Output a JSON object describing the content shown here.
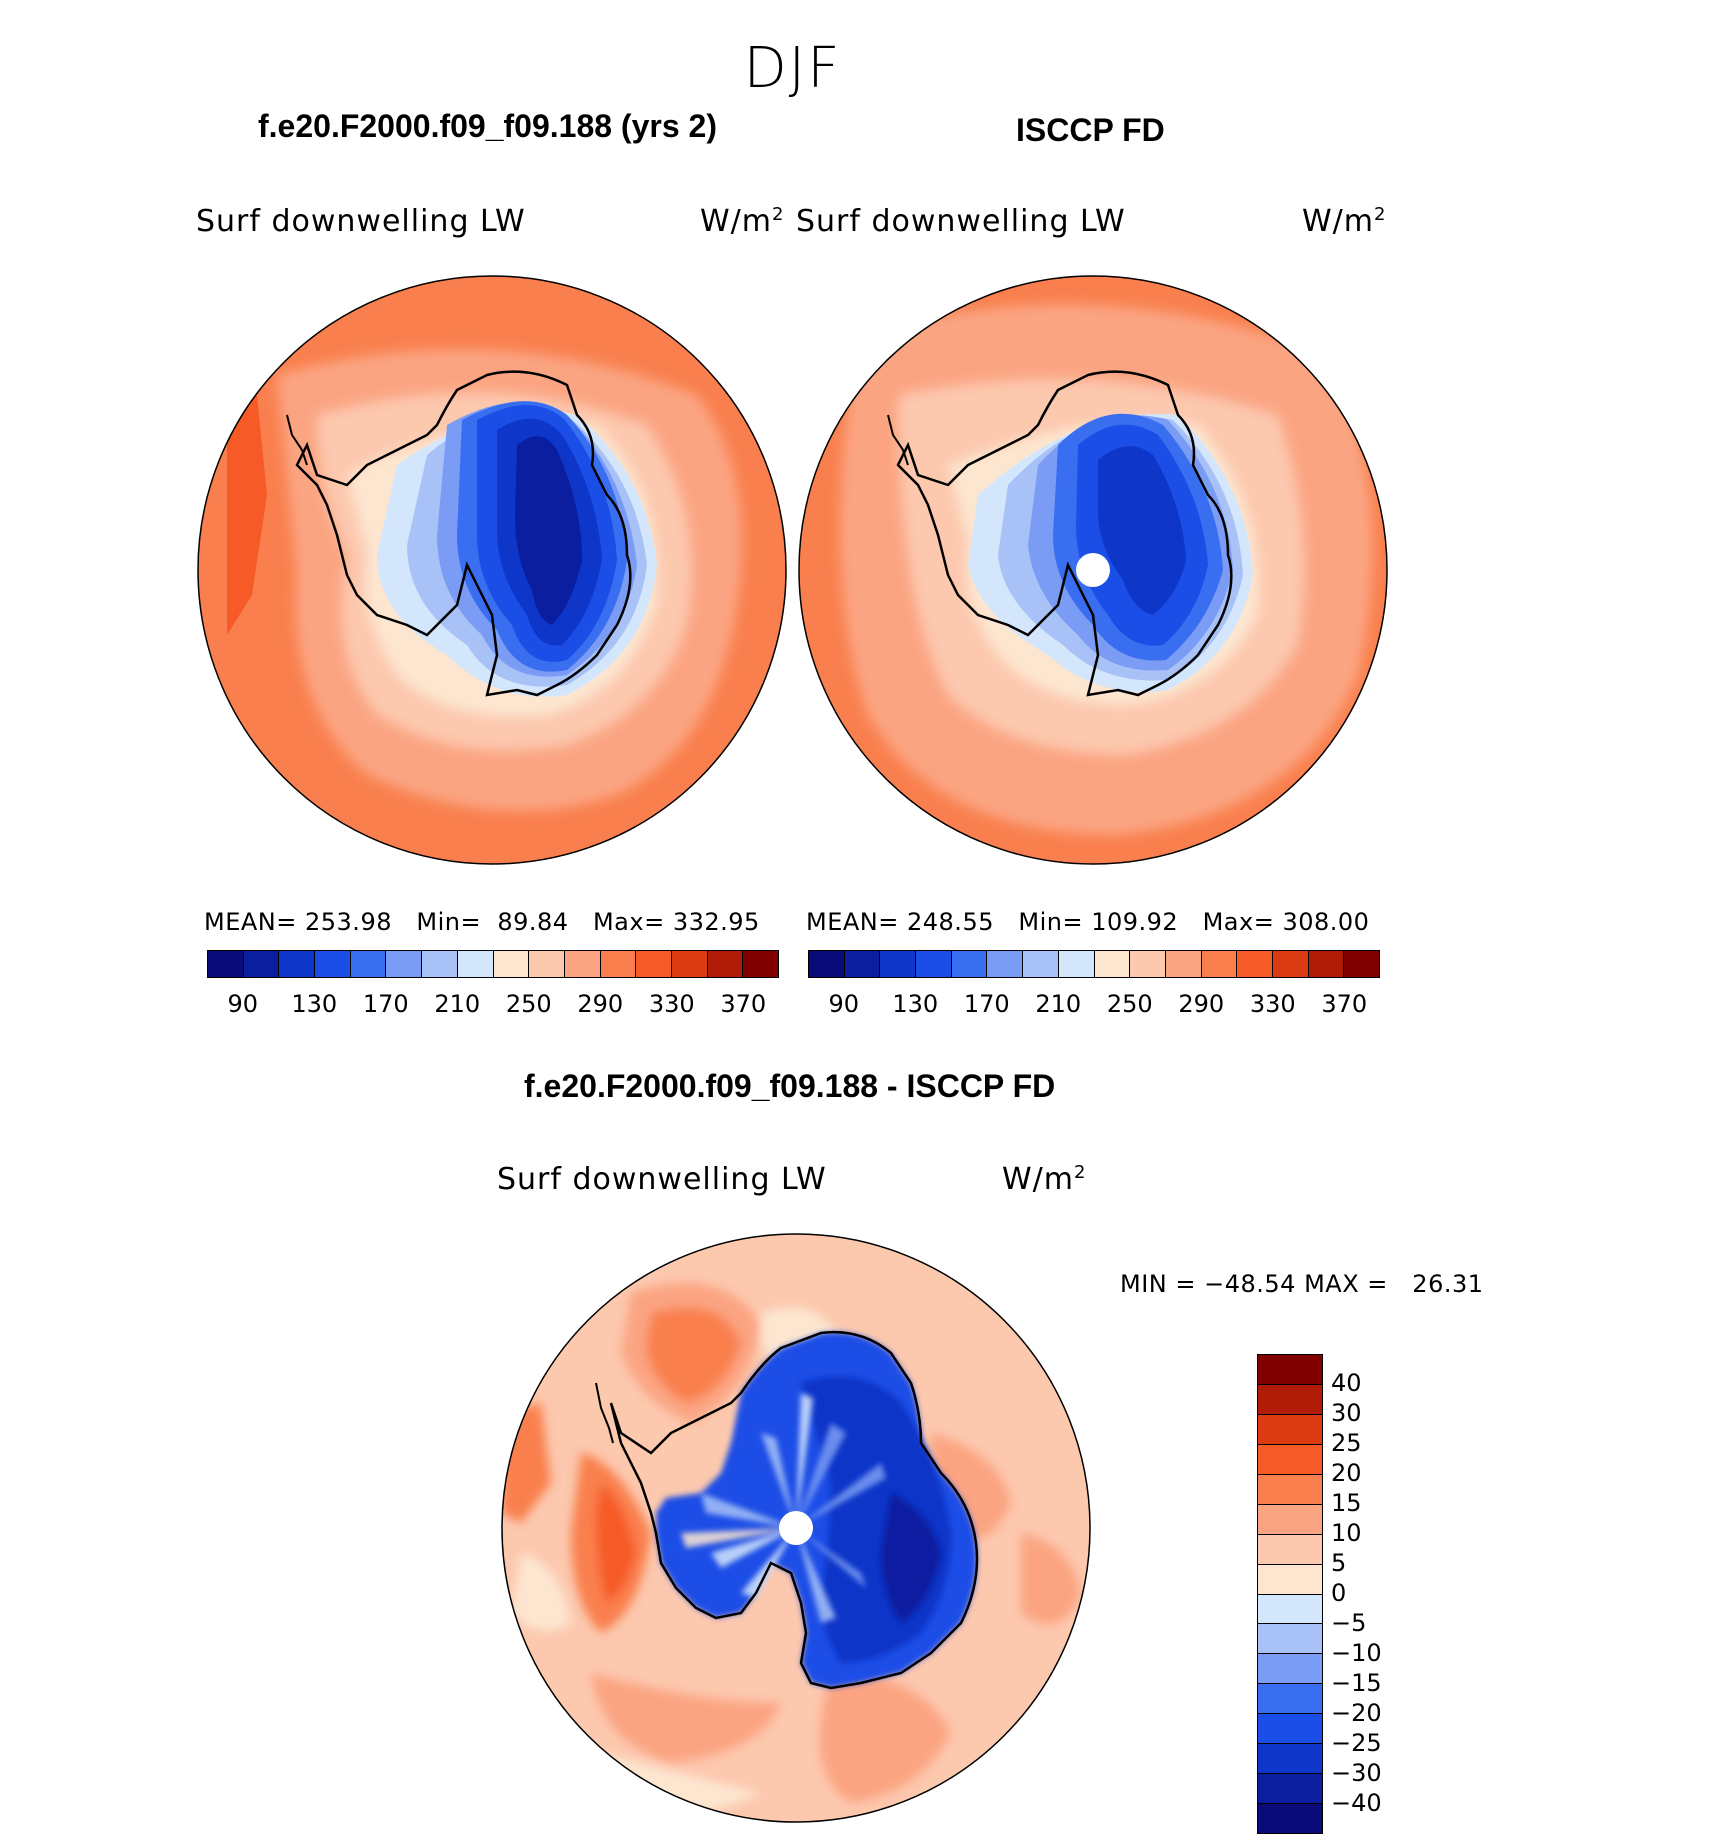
{
  "figure": {
    "season": "DJF",
    "variable_label": "Surf  downwelling  LW",
    "units_text": "W/m",
    "units_sup": "2"
  },
  "panels": {
    "model": {
      "title": "f.e20.F2000.f09_f09.188 (yrs 2)",
      "stats": {
        "mean_label": "MEAN=",
        "mean_value": "253.98",
        "min_label": "Min=",
        "min_value": "89.84",
        "max_label": "Max=",
        "max_value": "332.95"
      }
    },
    "obs": {
      "title": "ISCCP FD",
      "stats": {
        "mean_label": "MEAN=",
        "mean_value": "248.55",
        "min_label": "Min=",
        "min_value": "109.92",
        "max_label": "Max=",
        "max_value": "308.00"
      }
    },
    "diff": {
      "title": "f.e20.F2000.f09_f09.188 - ISCCP FD",
      "stats": {
        "min_label": "MIN =",
        "min_value": "−48.54",
        "max_label": "MAX =",
        "max_value": "26.31"
      }
    }
  },
  "colorbars": {
    "absolute": {
      "colors": [
        "#0a0a78",
        "#0c1ea0",
        "#0e36c8",
        "#1a4ee6",
        "#3a6ef0",
        "#7a9cf4",
        "#a8c2f8",
        "#d4e6fc",
        "#fde6d0",
        "#fcc8ae",
        "#fba482",
        "#f9804e",
        "#f65a26",
        "#dc3a10",
        "#b01c08",
        "#800000"
      ],
      "tick_labels": [
        "90",
        "130",
        "170",
        "210",
        "250",
        "290",
        "330",
        "370"
      ]
    },
    "difference": {
      "colors": [
        "#0a0a78",
        "#0c1ea0",
        "#0e36c8",
        "#1a4ee6",
        "#3a6ef0",
        "#7a9cf4",
        "#a8c2f8",
        "#d4e6fc",
        "#fde6d0",
        "#fcc8ae",
        "#fba482",
        "#f9804e",
        "#f65a26",
        "#dc3a10",
        "#b01c08",
        "#800000"
      ],
      "tick_labels": [
        "−40",
        "−30",
        "−25",
        "−20",
        "−15",
        "−10",
        "−5",
        "0",
        "5",
        "10",
        "15",
        "20",
        "25",
        "30",
        "40"
      ]
    }
  }
}
